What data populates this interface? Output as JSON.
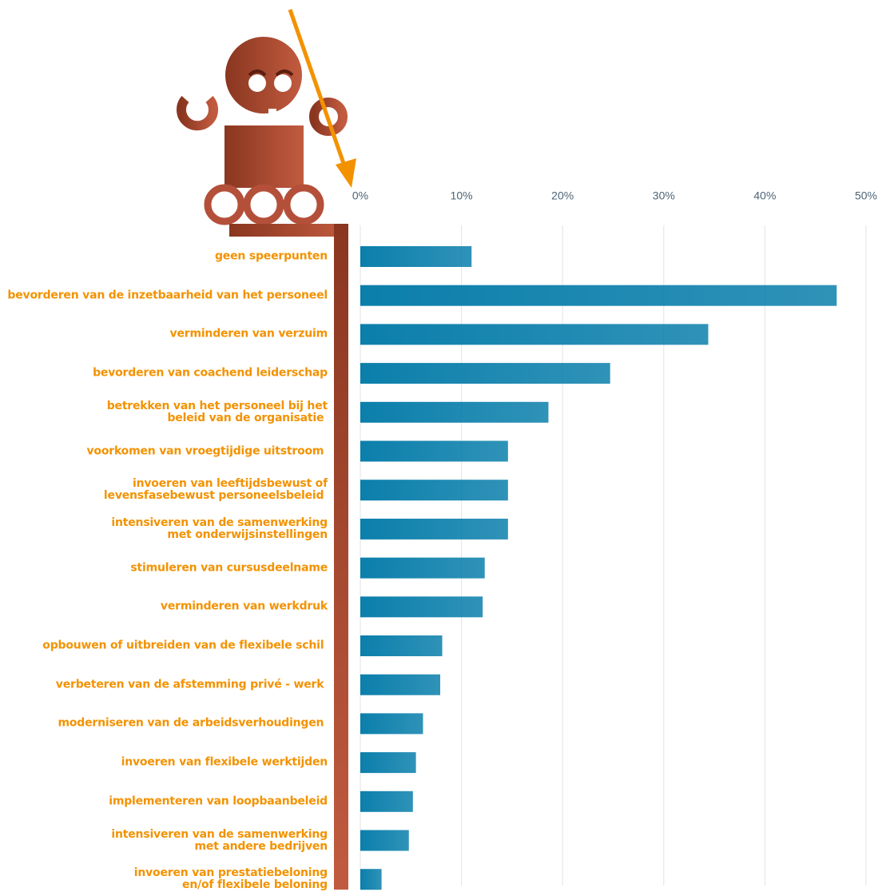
{
  "chart_data": {
    "type": "barh",
    "categories": [
      "geen speerpunten",
      "bevorderen van de inzetbaarheid van het personeel",
      "verminderen van verzuim",
      "bevorderen van coachend leiderschap",
      "betrekken van het personeel bij het\nbeleid van de organisatie ",
      "voorkomen van vroegtijdige uitstroom ",
      "invoeren van leeftijdsbewust of\nlevensfasebewust personeelsbeleid ",
      "intensiveren van de samenwerking\nmet onderwijsinstellingen",
      "stimuleren van cursusdeelname",
      "verminderen van werkdruk",
      "opbouwen of uitbreiden van de flexibele schil ",
      "verbeteren van de afstemming privé - werk ",
      "moderniseren van de arbeidsverhoudingen ",
      "invoeren van flexibele werktijden",
      "implementeren van loopbaanbeleid",
      "intensiveren van de samenwerking\nmet andere bedrijven",
      "invoeren van prestatiebeloning\nen/of flexibele beloning"
    ],
    "values": [
      11.0,
      47.1,
      34.4,
      24.7,
      18.6,
      14.6,
      14.6,
      14.6,
      12.3,
      12.1,
      8.1,
      7.9,
      6.2,
      5.5,
      5.2,
      4.8,
      2.1
    ],
    "color": "#0b7fab",
    "xlim": [
      0,
      50
    ],
    "xticks": [
      {
        "value": 0,
        "label": "0%"
      },
      {
        "value": 10,
        "label": "10%"
      },
      {
        "value": 20,
        "label": "20%"
      },
      {
        "value": 30,
        "label": "30%"
      },
      {
        "value": 40,
        "label": "40%"
      },
      {
        "value": 50,
        "label": "50%"
      }
    ],
    "grid": true
  }
}
